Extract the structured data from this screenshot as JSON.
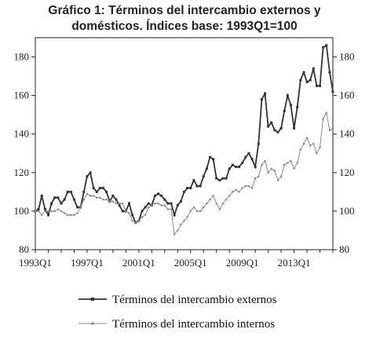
{
  "chart_data": {
    "type": "line",
    "title": "Gráfico 1: Términos del intercambio externos y domésticos. Índices base: 1993Q1=100",
    "title_lines": [
      "Gráfico 1: Términos del intercambio externos y",
      "domésticos. Índices base: 1993Q1=100"
    ],
    "ylim": [
      80,
      190
    ],
    "yticks": [
      80,
      100,
      120,
      140,
      160,
      180
    ],
    "xlim": [
      1993.0,
      2015.0
    ],
    "xtick_labels": [
      "1993Q1",
      "1997Q1",
      "2001Q1",
      "2005Q1",
      "2009Q1",
      "2013Q1"
    ],
    "xtick_values": [
      1993.0,
      1997.0,
      2001.0,
      2005.0,
      2009.0,
      2013.0
    ],
    "grid": false,
    "legend_position": "bottom",
    "series": [
      {
        "name": "Términos del intercambio externos",
        "color": "#333333",
        "marker": "square",
        "points": [
          [
            1993.0,
            100
          ],
          [
            1993.25,
            101
          ],
          [
            1993.5,
            108
          ],
          [
            1993.75,
            101
          ],
          [
            1994.0,
            98
          ],
          [
            1994.25,
            104
          ],
          [
            1994.5,
            107
          ],
          [
            1994.75,
            107
          ],
          [
            1995.0,
            104
          ],
          [
            1995.25,
            106
          ],
          [
            1995.5,
            110
          ],
          [
            1995.75,
            110
          ],
          [
            1996.0,
            106
          ],
          [
            1996.25,
            102
          ],
          [
            1996.5,
            102
          ],
          [
            1996.75,
            110
          ],
          [
            1997.0,
            118
          ],
          [
            1997.25,
            120
          ],
          [
            1997.5,
            112
          ],
          [
            1997.75,
            110
          ],
          [
            1998.0,
            112
          ],
          [
            1998.25,
            112
          ],
          [
            1998.5,
            110
          ],
          [
            1998.75,
            105
          ],
          [
            1999.0,
            108
          ],
          [
            1999.25,
            106
          ],
          [
            1999.5,
            103
          ],
          [
            1999.75,
            100
          ],
          [
            2000.0,
            100
          ],
          [
            2000.25,
            104
          ],
          [
            2000.5,
            98
          ],
          [
            2000.75,
            94
          ],
          [
            2001.0,
            95
          ],
          [
            2001.25,
            100
          ],
          [
            2001.5,
            102
          ],
          [
            2001.75,
            104
          ],
          [
            2002.0,
            103
          ],
          [
            2002.25,
            108
          ],
          [
            2002.5,
            109
          ],
          [
            2002.75,
            108
          ],
          [
            2003.0,
            106
          ],
          [
            2003.25,
            104
          ],
          [
            2003.5,
            104
          ],
          [
            2003.75,
            98
          ],
          [
            2004.0,
            103
          ],
          [
            2004.25,
            105
          ],
          [
            2004.5,
            110
          ],
          [
            2004.75,
            112
          ],
          [
            2005.0,
            112
          ],
          [
            2005.25,
            116
          ],
          [
            2005.5,
            113
          ],
          [
            2005.75,
            113
          ],
          [
            2006.0,
            118
          ],
          [
            2006.25,
            122
          ],
          [
            2006.5,
            128
          ],
          [
            2006.75,
            127
          ],
          [
            2007.0,
            117
          ],
          [
            2007.25,
            116
          ],
          [
            2007.5,
            117
          ],
          [
            2007.75,
            117
          ],
          [
            2008.0,
            122
          ],
          [
            2008.25,
            124
          ],
          [
            2008.5,
            123
          ],
          [
            2008.75,
            123
          ],
          [
            2009.0,
            125
          ],
          [
            2009.25,
            128
          ],
          [
            2009.5,
            130
          ],
          [
            2009.75,
            127
          ],
          [
            2010.0,
            123
          ],
          [
            2010.25,
            135
          ],
          [
            2010.5,
            158
          ],
          [
            2010.75,
            161
          ],
          [
            2011.0,
            144
          ],
          [
            2011.25,
            146
          ],
          [
            2011.5,
            142
          ],
          [
            2011.75,
            141
          ],
          [
            2012.0,
            143
          ],
          [
            2012.25,
            152
          ],
          [
            2012.5,
            160
          ],
          [
            2012.75,
            155
          ],
          [
            2013.0,
            143
          ],
          [
            2013.25,
            154
          ],
          [
            2013.5,
            168
          ],
          [
            2013.75,
            172
          ],
          [
            2014.0,
            167
          ],
          [
            2014.25,
            168
          ],
          [
            2014.5,
            174
          ],
          [
            2014.75,
            165
          ],
          [
            2015.0,
            165
          ],
          [
            2015.25,
            185
          ],
          [
            2015.5,
            186
          ],
          [
            2015.75,
            172
          ],
          [
            2016.0,
            162
          ]
        ]
      },
      {
        "name": "Términos del intercambio internos",
        "color": "#888888",
        "marker": "small-square",
        "points": [
          [
            1993.0,
            100
          ],
          [
            1993.25,
            100
          ],
          [
            1993.5,
            98
          ],
          [
            1993.75,
            100
          ],
          [
            1994.0,
            100
          ],
          [
            1994.25,
            100
          ],
          [
            1994.5,
            100
          ],
          [
            1994.75,
            101
          ],
          [
            1995.0,
            100
          ],
          [
            1995.25,
            99
          ],
          [
            1995.5,
            98
          ],
          [
            1995.75,
            98
          ],
          [
            1996.0,
            98
          ],
          [
            1996.25,
            99
          ],
          [
            1996.5,
            102
          ],
          [
            1996.75,
            106
          ],
          [
            1997.0,
            109
          ],
          [
            1997.25,
            108
          ],
          [
            1997.5,
            108
          ],
          [
            1997.75,
            107
          ],
          [
            1998.0,
            107
          ],
          [
            1998.25,
            106
          ],
          [
            1998.5,
            106
          ],
          [
            1998.75,
            105
          ],
          [
            1999.0,
            105
          ],
          [
            1999.25,
            104
          ],
          [
            1999.5,
            104
          ],
          [
            1999.75,
            104
          ],
          [
            2000.0,
            100
          ],
          [
            2000.25,
            99
          ],
          [
            2000.5,
            95
          ],
          [
            2000.75,
            94
          ],
          [
            2001.0,
            95
          ],
          [
            2001.25,
            97
          ],
          [
            2001.5,
            98
          ],
          [
            2001.75,
            102
          ],
          [
            2002.0,
            103
          ],
          [
            2002.25,
            104
          ],
          [
            2002.5,
            104
          ],
          [
            2002.75,
            103
          ],
          [
            2003.0,
            103
          ],
          [
            2003.25,
            101
          ],
          [
            2003.5,
            101
          ],
          [
            2003.75,
            88
          ],
          [
            2004.0,
            90
          ],
          [
            2004.25,
            93
          ],
          [
            2004.5,
            95
          ],
          [
            2004.75,
            97
          ],
          [
            2005.0,
            100
          ],
          [
            2005.25,
            102
          ],
          [
            2005.5,
            100
          ],
          [
            2005.75,
            100
          ],
          [
            2006.0,
            102
          ],
          [
            2006.25,
            104
          ],
          [
            2006.5,
            106
          ],
          [
            2006.75,
            108
          ],
          [
            2007.0,
            104
          ],
          [
            2007.25,
            101
          ],
          [
            2007.5,
            104
          ],
          [
            2007.75,
            106
          ],
          [
            2008.0,
            108
          ],
          [
            2008.25,
            110
          ],
          [
            2008.5,
            111
          ],
          [
            2008.75,
            110
          ],
          [
            2009.0,
            112
          ],
          [
            2009.25,
            113
          ],
          [
            2009.5,
            113
          ],
          [
            2009.75,
            112
          ],
          [
            2010.0,
            117
          ],
          [
            2010.25,
            118
          ],
          [
            2010.5,
            124
          ],
          [
            2010.75,
            126
          ],
          [
            2011.0,
            120
          ],
          [
            2011.25,
            122
          ],
          [
            2011.5,
            121
          ],
          [
            2011.75,
            116
          ],
          [
            2012.0,
            118
          ],
          [
            2012.25,
            124
          ],
          [
            2012.5,
            125
          ],
          [
            2012.75,
            126
          ],
          [
            2013.0,
            122
          ],
          [
            2013.25,
            125
          ],
          [
            2013.5,
            132
          ],
          [
            2013.75,
            135
          ],
          [
            2014.0,
            138
          ],
          [
            2014.25,
            134
          ],
          [
            2014.5,
            135
          ],
          [
            2014.75,
            130
          ],
          [
            2015.0,
            133
          ],
          [
            2015.25,
            148
          ],
          [
            2015.5,
            151
          ],
          [
            2015.75,
            142
          ],
          [
            2016.0,
            143
          ]
        ]
      }
    ]
  }
}
